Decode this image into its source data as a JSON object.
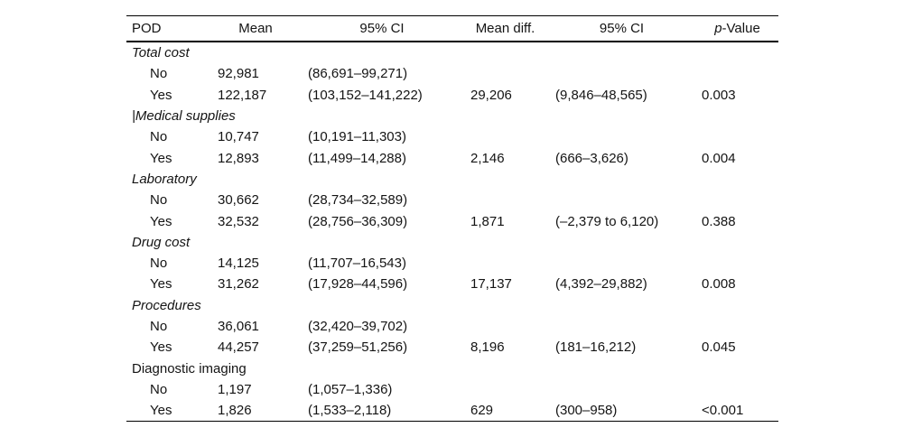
{
  "table": {
    "header": {
      "pod": "POD",
      "mean": "Mean",
      "ci1": "95% CI",
      "mean_diff": "Mean diff.",
      "ci2": "95% CI",
      "p_italic": "p",
      "p_rest": "-Value"
    },
    "sections": [
      {
        "label": "Total cost",
        "rows": [
          {
            "pod": "No",
            "mean": "92,981",
            "ci": "(86,691–99,271)",
            "mean_diff": "",
            "ci2": "",
            "p": ""
          },
          {
            "pod": "Yes",
            "mean": "122,187",
            "ci": "(103,152–141,222)",
            "mean_diff": "29,206",
            "ci2": "(9,846–48,565)",
            "p": "0.003"
          }
        ]
      },
      {
        "label": "|Medical supplies",
        "rows": [
          {
            "pod": "No",
            "mean": "10,747",
            "ci": "(10,191–11,303)",
            "mean_diff": "",
            "ci2": "",
            "p": ""
          },
          {
            "pod": "Yes",
            "mean": "12,893",
            "ci": "(11,499–14,288)",
            "mean_diff": "2,146",
            "ci2": "(666–3,626)",
            "p": "0.004"
          }
        ]
      },
      {
        "label": "Laboratory",
        "rows": [
          {
            "pod": "No",
            "mean": "30,662",
            "ci": "(28,734–32,589)",
            "mean_diff": "",
            "ci2": "",
            "p": ""
          },
          {
            "pod": "Yes",
            "mean": "32,532",
            "ci": "(28,756–36,309)",
            "mean_diff": "1,871",
            "ci2": "(–2,379 to 6,120)",
            "p": "0.388"
          }
        ]
      },
      {
        "label": "Drug cost",
        "rows": [
          {
            "pod": "No",
            "mean": "14,125",
            "ci": "(11,707–16,543)",
            "mean_diff": "",
            "ci2": "",
            "p": ""
          },
          {
            "pod": "Yes",
            "mean": "31,262",
            "ci": "(17,928–44,596)",
            "mean_diff": "17,137",
            "ci2": "(4,392–29,882)",
            "p": "0.008"
          }
        ]
      },
      {
        "label": "Procedures",
        "rows": [
          {
            "pod": "No",
            "mean": "36,061",
            "ci": "(32,420–39,702)",
            "mean_diff": "",
            "ci2": "",
            "p": ""
          },
          {
            "pod": "Yes",
            "mean": "44,257",
            "ci": "(37,259–51,256)",
            "mean_diff": "8,196",
            "ci2": "(181–16,212)",
            "p": "0.045"
          }
        ]
      },
      {
        "label": "Diagnostic imaging",
        "rows": [
          {
            "pod": "No",
            "mean": "1,197",
            "ci": "(1,057–1,336)",
            "mean_diff": "",
            "ci2": "",
            "p": ""
          },
          {
            "pod": "Yes",
            "mean": "1,826",
            "ci": "(1,533–2,118)",
            "mean_diff": "629",
            "ci2": "(300–958)",
            "p": "<0.001"
          }
        ]
      }
    ]
  }
}
